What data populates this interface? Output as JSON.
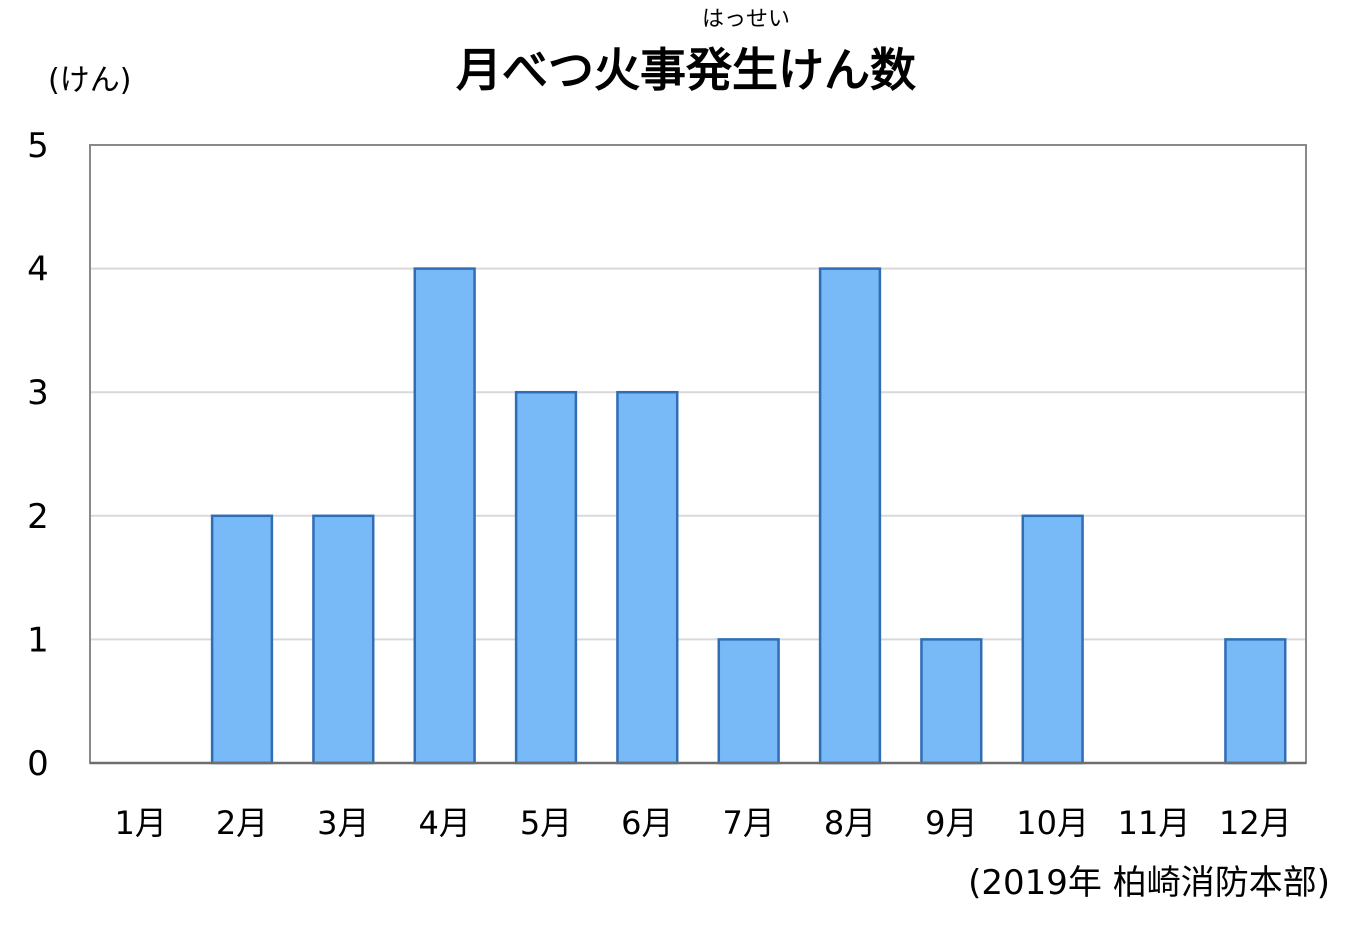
{
  "chart_data": {
    "type": "bar",
    "title": "月べつ火事発生けん数",
    "title_ruby": "はっせい",
    "ylabel": "(けん)",
    "xlabel": "",
    "source": "(2019年 柏崎消防本部)",
    "categories": [
      "1月",
      "2月",
      "3月",
      "4月",
      "5月",
      "6月",
      "7月",
      "8月",
      "9月",
      "10月",
      "11月",
      "12月"
    ],
    "series": [
      {
        "values": [
          0,
          2,
          2,
          4,
          3,
          3,
          1,
          4,
          1,
          2,
          0,
          1
        ]
      }
    ],
    "yticks": [
      "0",
      "1",
      "2",
      "3",
      "4",
      "5"
    ],
    "ylim": [
      0,
      5
    ],
    "grid": true,
    "legend": "none",
    "bar_color": "#78b9f8",
    "bar_edge_color": "#2f6db5",
    "grid_color": "#d9d9d9",
    "frame_color": "#898989"
  }
}
